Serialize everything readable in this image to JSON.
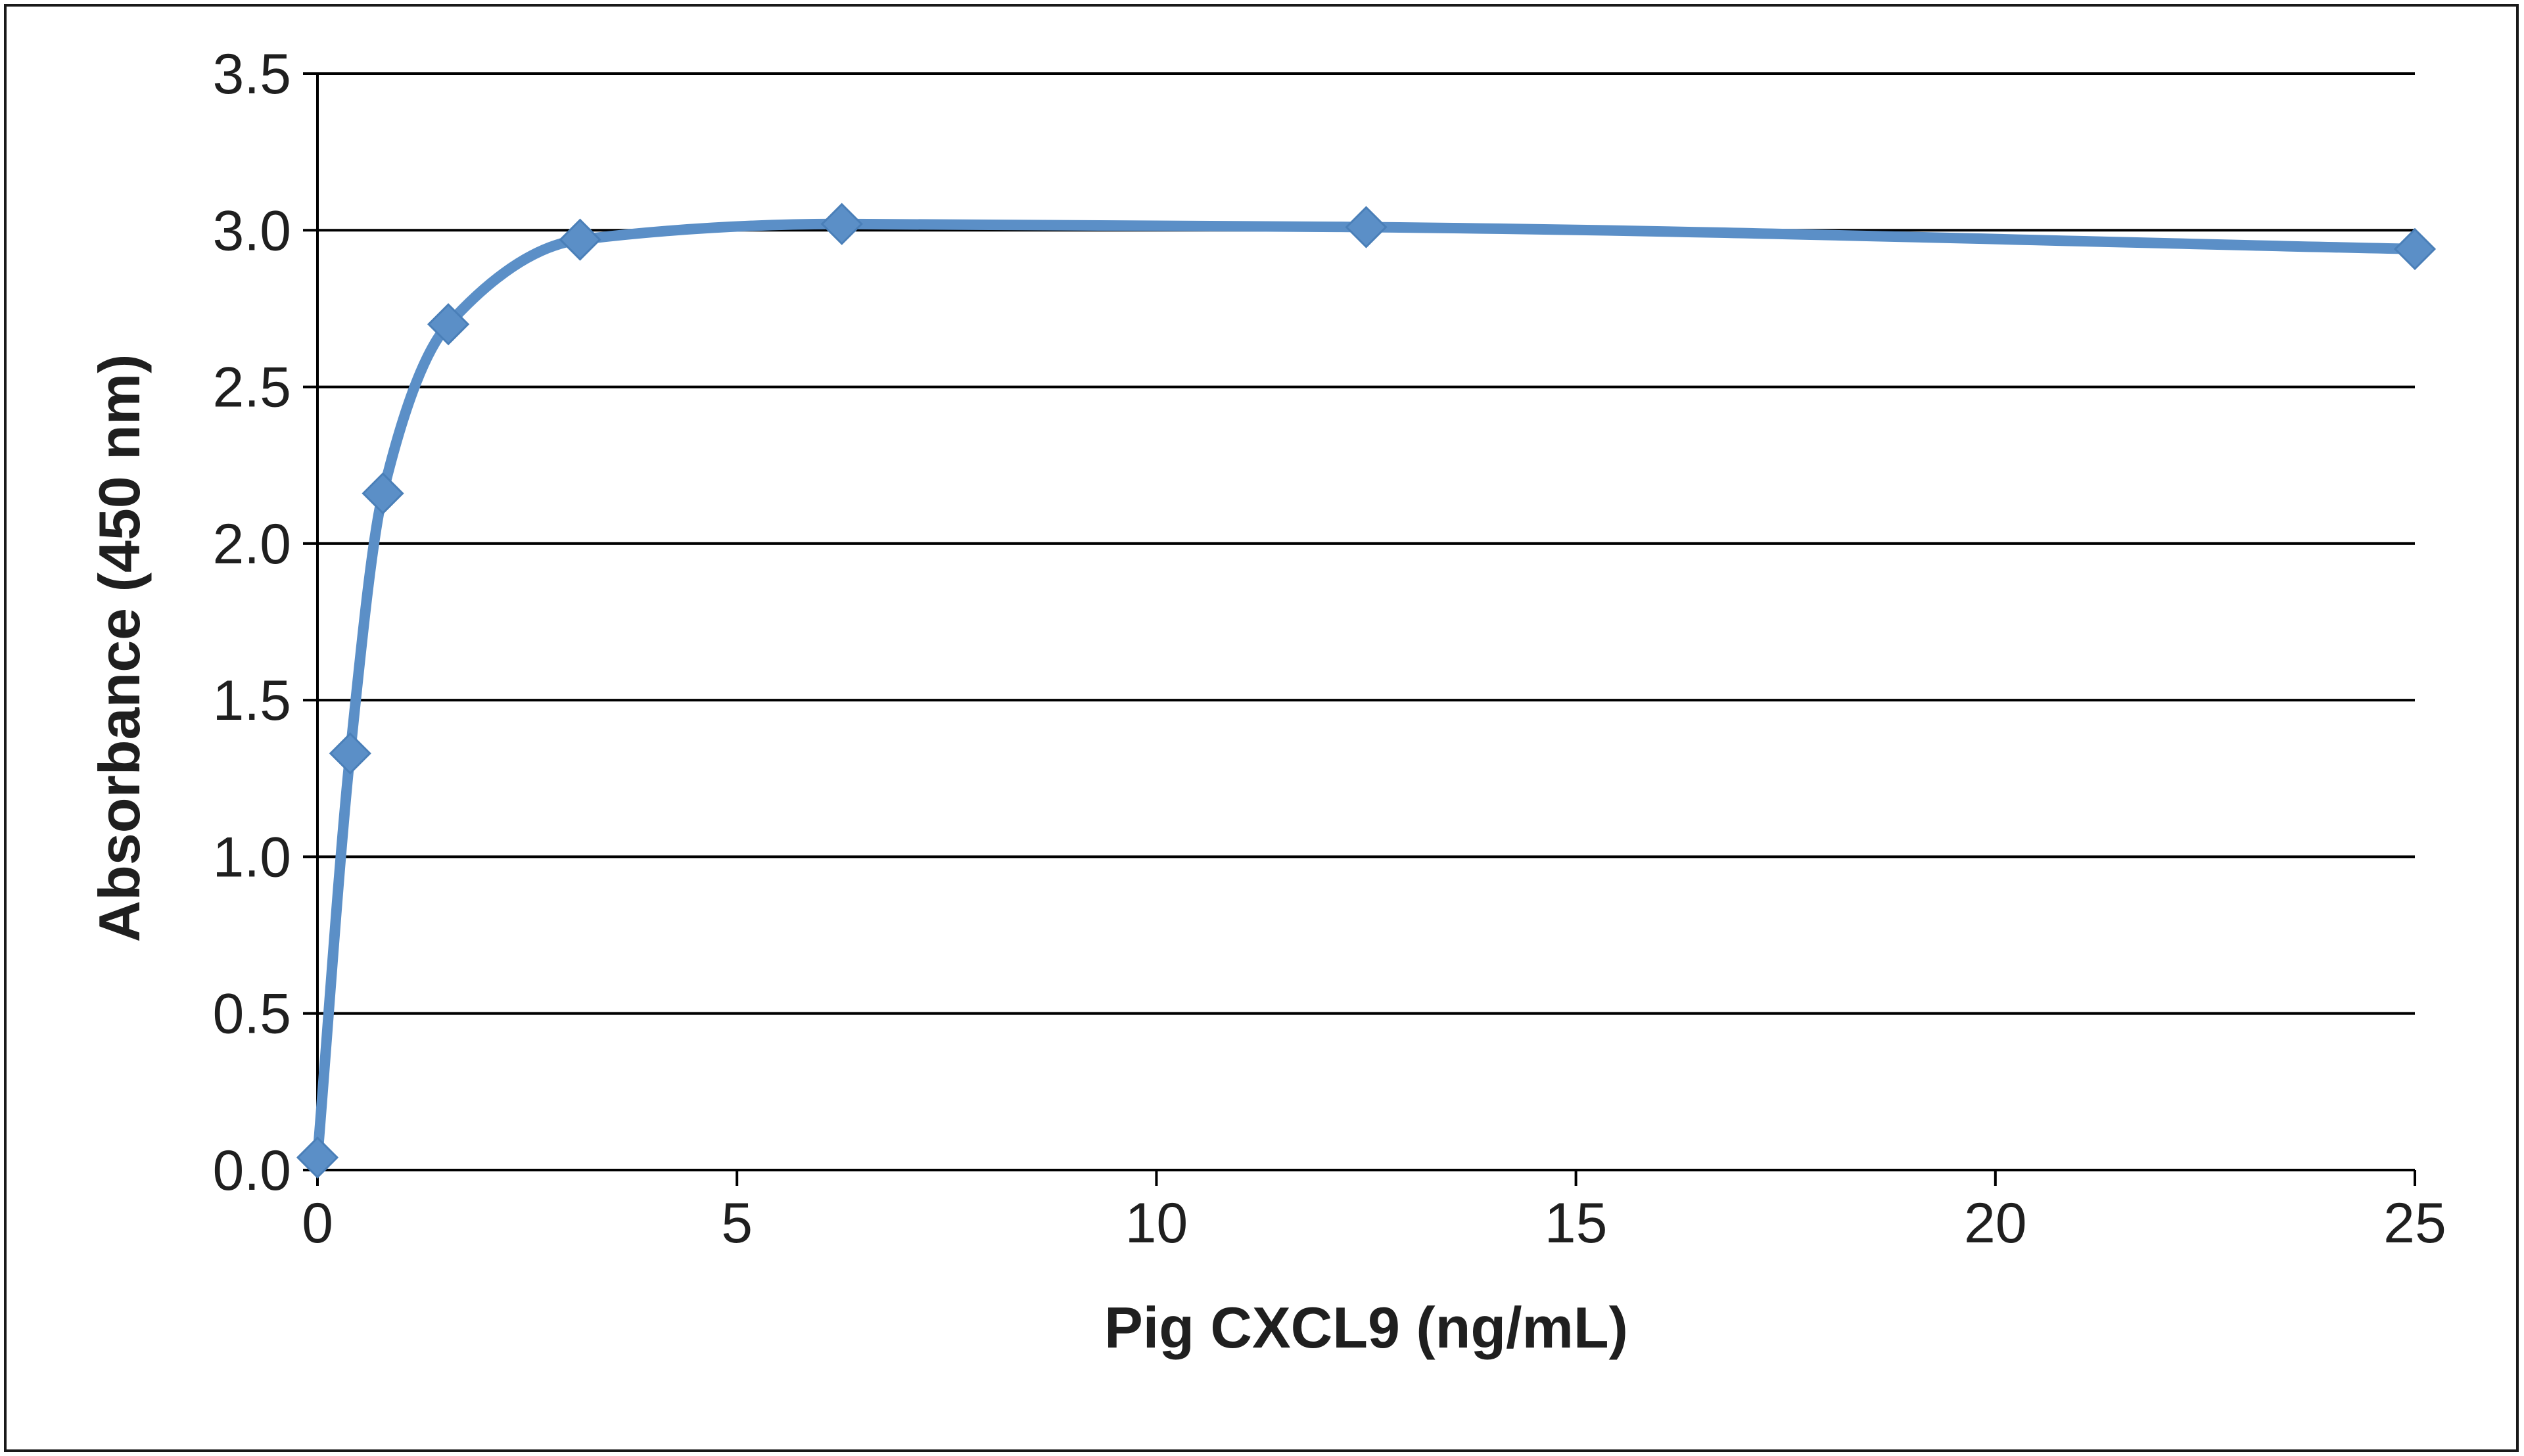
{
  "chart_data": {
    "type": "line",
    "title": "",
    "xlabel": "Pig CXCL9  (ng/mL)",
    "ylabel": "Absorbance  (450 nm)",
    "xlim": [
      0,
      25
    ],
    "ylim": [
      0,
      3.5
    ],
    "x_ticks": [
      "0",
      "5",
      "10",
      "15",
      "20",
      "25"
    ],
    "y_ticks": [
      "0.0",
      "0.5",
      "1.0",
      "1.5",
      "2.0",
      "2.5",
      "3.0",
      "3.5"
    ],
    "grid": "horizontal",
    "legend": "none",
    "series": [
      {
        "color": "#5b8fc7",
        "marker": "diamond",
        "smooth": true,
        "x": [
          0,
          0.39,
          0.78,
          1.56,
          3.13,
          6.25,
          12.5,
          25
        ],
        "y": [
          0.04,
          1.33,
          2.16,
          2.7,
          2.97,
          3.02,
          3.01,
          2.94
        ]
      }
    ]
  }
}
